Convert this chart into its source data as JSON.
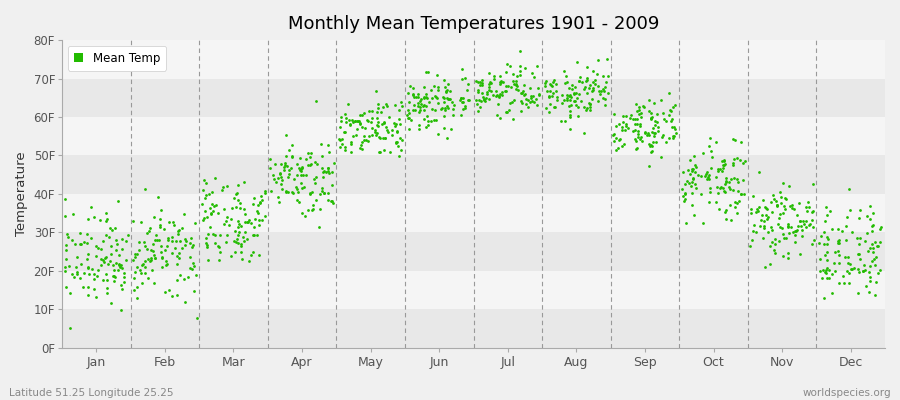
{
  "title": "Monthly Mean Temperatures 1901 - 2009",
  "ylabel": "Temperature",
  "xlabel_labels": [
    "Jan",
    "Feb",
    "Mar",
    "Apr",
    "May",
    "Jun",
    "Jul",
    "Aug",
    "Sep",
    "Oct",
    "Nov",
    "Dec"
  ],
  "ytick_labels": [
    "0F",
    "10F",
    "20F",
    "30F",
    "40F",
    "50F",
    "60F",
    "70F",
    "80F"
  ],
  "ytick_values": [
    0,
    10,
    20,
    30,
    40,
    50,
    60,
    70,
    80
  ],
  "ylim": [
    0,
    80
  ],
  "dot_color": "#22bb00",
  "dot_size": 4,
  "legend_label": "Mean Temp",
  "bg_color": "#f0f0f0",
  "band_colors": [
    "#e8e8e8",
    "#f5f5f5"
  ],
  "dashed_line_color": "#999999",
  "footer_left": "Latitude 51.25 Longitude 25.25",
  "footer_right": "worldspecies.org",
  "monthly_means_F": [
    23,
    24,
    33,
    45,
    57,
    64,
    67,
    66,
    57,
    44,
    33,
    25
  ],
  "monthly_stds_F": [
    6,
    6,
    6,
    5,
    4,
    4,
    3,
    4,
    4,
    5,
    5,
    6
  ],
  "n_years": 109
}
